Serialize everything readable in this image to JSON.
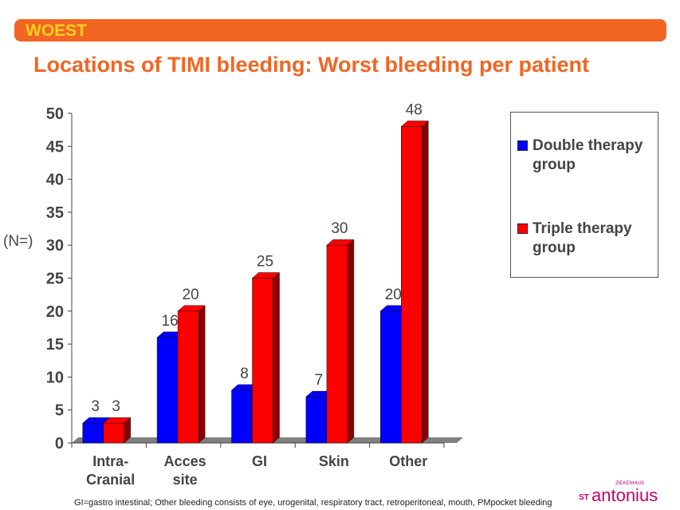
{
  "header": {
    "label": "WOEST"
  },
  "slide_title": "Locations of TIMI bleeding: Worst bleeding per patient",
  "ylabel": "(N=)",
  "footnote": "GI=gastro intestinal; Other bleeding consists of eye, urogenital, respiratory tract, retroperitoneal, mouth, PMpocket bleeding",
  "logo": {
    "small_text": "ZIEKENHUIS",
    "prefix": "ST",
    "name": "antonius"
  },
  "colors": {
    "accent": "#f26522",
    "header_text": "#ffd21f",
    "double": "#0000ff",
    "triple": "#ff0000",
    "logo": "#c4006e"
  },
  "legend": [
    {
      "label": "Double therapy group",
      "color": "#0000ff"
    },
    {
      "label": "Triple therapy group",
      "color": "#ff0000"
    }
  ],
  "chart_data": {
    "type": "bar",
    "categories": [
      [
        "Intra-",
        "Cranial"
      ],
      [
        "Acces",
        "site"
      ],
      [
        "GI"
      ],
      [
        "Skin"
      ],
      [
        "Other"
      ]
    ],
    "series": [
      {
        "name": "Double therapy group",
        "values": [
          3,
          16,
          8,
          7,
          20
        ],
        "color": "#0000ff"
      },
      {
        "name": "Triple therapy group",
        "values": [
          3,
          20,
          25,
          30,
          48
        ],
        "color": "#ff0000"
      }
    ],
    "ylabel": "(N=)",
    "ylim": [
      0,
      50
    ],
    "yticks": [
      0,
      5,
      10,
      15,
      20,
      25,
      30,
      35,
      40,
      45,
      50
    ],
    "grid": false,
    "legend_position": "right"
  }
}
